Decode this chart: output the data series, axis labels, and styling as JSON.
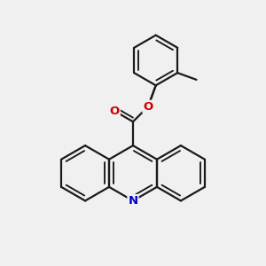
{
  "bg_color": "#f0f0f0",
  "bond_color": "#1a1a1a",
  "N_color": "#0000cc",
  "O_color": "#cc0000",
  "line_width": 1.6,
  "font_size": 9.5,
  "figsize": [
    3.0,
    3.0
  ],
  "dpi": 100,
  "xlim": [
    -1.05,
    1.05
  ],
  "ylim": [
    -1.05,
    1.05
  ]
}
